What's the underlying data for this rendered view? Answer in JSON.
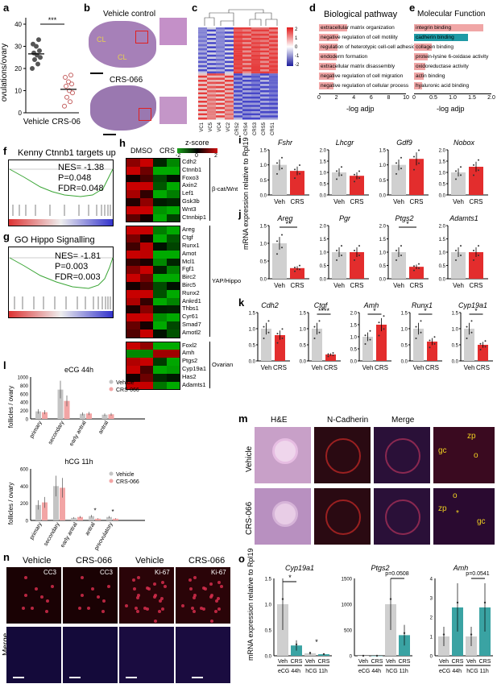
{
  "labels": {
    "a": "a",
    "b": "b",
    "c": "c",
    "d": "d",
    "e": "e",
    "f": "f",
    "g": "g",
    "h": "h",
    "i": "i",
    "j": "j",
    "k": "k",
    "l": "l",
    "m": "m",
    "n": "n",
    "o": "o"
  },
  "panel_a": {
    "ylabel": "ovulations/ovary",
    "sig": "***",
    "chart_data": {
      "type": "scatter",
      "categories": [
        "Vehicle",
        "CRS-066"
      ],
      "ylim": [
        0,
        40
      ],
      "yticks": [
        "0",
        "10",
        "20",
        "30",
        "40"
      ],
      "series": [
        {
          "name": "Vehicle",
          "values": [
            20,
            22,
            24,
            25,
            26,
            27,
            28,
            30,
            31,
            33
          ]
        },
        {
          "name": "CRS-066",
          "values": [
            3,
            5,
            7,
            9,
            10,
            12,
            13,
            14,
            16,
            17
          ]
        }
      ]
    }
  },
  "panel_b": {
    "top": "Vehicle control",
    "bottom": "CRS-066",
    "cl": "CL"
  },
  "panel_c": {
    "cols": [
      "VC1",
      "VC5",
      "VC4",
      "VC2",
      "CRS2",
      "CRS4",
      "CRS3",
      "CRS5",
      "CRS1"
    ],
    "legend": [
      "2",
      "1",
      "0",
      "-1",
      "-2"
    ]
  },
  "panel_d": {
    "title": "Biological pathway",
    "xlabel": "-log adjp",
    "xticks": [
      "0",
      "2",
      "4",
      "6",
      "8",
      "10"
    ],
    "chart_data": {
      "type": "bar",
      "categories": [
        "extracellular matrix organization",
        "negative regulation of cell motility",
        "regulation of heterotypic cell-cell adhesion",
        "endoderm formation",
        "extracellular matrix disassembly",
        "negative regulation of cell migration",
        "negative regulation of cellular process"
      ],
      "values": [
        3.2,
        2.2,
        2.1,
        2.0,
        1.9,
        1.8,
        1.7
      ],
      "xlim": [
        0,
        10
      ]
    }
  },
  "panel_e": {
    "title": "Molecular Function",
    "xlabel": "-log adjp",
    "xticks": [
      "0",
      "0.5",
      "1.0",
      "1.5",
      "2.0"
    ],
    "chart_data": {
      "type": "bar",
      "categories": [
        "integrin binding",
        "cadherin binding",
        "collagen binding",
        "protein-lysine 6-oxidase activity",
        "oxidoreductase activity",
        "actin binding",
        "hyaluronic acid binding"
      ],
      "values": [
        1.8,
        1.4,
        0.45,
        0.35,
        0.3,
        0.25,
        0.2
      ],
      "colors": [
        "#f0a6a6",
        "#1f9aa6",
        "#f0a6a6",
        "#f0a6a6",
        "#f0a6a6",
        "#f0a6a6",
        "#f0a6a6"
      ],
      "xlim": [
        0,
        2
      ]
    }
  },
  "panel_f": {
    "title": "Kenny Ctnnb1 targets up",
    "nes": "NES= -1.38",
    "p": "P=0.048",
    "fdr": "FDR=0.048"
  },
  "panel_g": {
    "title": "GO Hippo Signalling",
    "nes": "NES= -1.81",
    "p": "P=0.003",
    "fdr": "FDR=0.003"
  },
  "panel_h": {
    "zscore": "z-score",
    "zlegend": [
      "-2",
      "0",
      "2"
    ],
    "dmso": "DMSO",
    "crs": "CRS",
    "groups": [
      {
        "name": "β-cat/Wnt",
        "genes": [
          "Cdh2",
          "Ctnnb1",
          "Foxo3",
          "Axin2",
          "Lef1",
          "Gsk3b",
          "Wnt3",
          "Ctnnbip1"
        ]
      },
      {
        "name": "YAP/Hippo",
        "genes": [
          "Areg",
          "Ctgf",
          "Runx1",
          "Amot",
          "Mcl1",
          "Fgf1",
          "Birc2",
          "Birc5",
          "Runx2",
          "Ankrd1",
          "Thbs1",
          "Cyr61",
          "Smad7",
          "Amotl2"
        ]
      },
      {
        "name": "Ovarian",
        "genes": [
          "Foxl2",
          "Amh",
          "Ptgs2",
          "Cyp19a1",
          "Has2",
          "Adamts1"
        ]
      }
    ]
  },
  "ylabel_ij": "mRNA expression relative to Rpl19",
  "xcats_veh_crs": [
    "Veh",
    "CRS"
  ],
  "panel_i": [
    {
      "gene": "Fshr",
      "yticks": [
        "0.0",
        "0.5",
        "1.0",
        "1.5"
      ],
      "values": [
        1.0,
        0.8
      ]
    },
    {
      "gene": "Lhcgr",
      "yticks": [
        "0.0",
        "0.5",
        "1.0",
        "1.5",
        "2.0"
      ],
      "values": [
        1.0,
        0.85
      ]
    },
    {
      "gene": "Gdf9",
      "yticks": [
        "0.0",
        "0.5",
        "1.0",
        "1.5"
      ],
      "values": [
        1.0,
        1.2
      ]
    },
    {
      "gene": "Nobox",
      "yticks": [
        "0.0",
        "0.5",
        "1.0",
        "1.5",
        "2.0"
      ],
      "values": [
        1.0,
        1.25
      ]
    }
  ],
  "panel_j": [
    {
      "gene": "Areg",
      "sig": "**",
      "yticks": [
        "0.0",
        "0.5",
        "1.0",
        "1.5"
      ],
      "values": [
        1.0,
        0.3
      ]
    },
    {
      "gene": "Pgr",
      "sig": "",
      "yticks": [
        "0.0",
        "0.5",
        "1.0",
        "1.5",
        "2.0"
      ],
      "values": [
        1.0,
        1.0
      ]
    },
    {
      "gene": "Ptgs2",
      "sig": "*",
      "yticks": [
        "0.0",
        "0.5",
        "1.0",
        "1.5",
        "2.0"
      ],
      "values": [
        1.0,
        0.45
      ]
    },
    {
      "gene": "Adamts1",
      "sig": "",
      "yticks": [
        "0.0",
        "0.5",
        "1.0",
        "1.5",
        "2.0"
      ],
      "values": [
        1.0,
        1.0
      ]
    }
  ],
  "panel_k": [
    {
      "gene": "Cdh2",
      "sig": "",
      "yticks": [
        "0.0",
        "0.5",
        "1.0",
        "1.5"
      ],
      "values": [
        1.0,
        0.8
      ]
    },
    {
      "gene": "Ctgf",
      "sig": "****",
      "yticks": [
        "0.0",
        "0.5",
        "1.0",
        "1.5"
      ],
      "values": [
        1.0,
        0.2
      ]
    },
    {
      "gene": "Amh",
      "sig": "*",
      "yticks": [
        "0.0",
        "0.5",
        "1.0",
        "1.5",
        "2.0"
      ],
      "values": [
        1.0,
        1.5
      ]
    },
    {
      "gene": "Runx1",
      "sig": "*",
      "yticks": [
        "0.0",
        "0.5",
        "1.0",
        "1.5"
      ],
      "values": [
        1.0,
        0.6
      ]
    },
    {
      "gene": "Cyp19a1",
      "sig": "*",
      "yticks": [
        "0.0",
        "0.5",
        "1.0",
        "1.5"
      ],
      "values": [
        1.0,
        0.5
      ]
    }
  ],
  "panel_l": {
    "top": {
      "title": "eCG 44h",
      "ylabel": "follicles / ovary",
      "yticks": [
        "0",
        "200",
        "400",
        "600",
        "800",
        "1000"
      ],
      "legend": [
        "Vehicle",
        "CRS-066"
      ],
      "chart_data": {
        "type": "bar",
        "categories": [
          "primary",
          "secondary",
          "early antral",
          "antral"
        ],
        "series": [
          {
            "name": "Vehicle",
            "values": [
              180,
              700,
              120,
              100
            ]
          },
          {
            "name": "CRS-066",
            "values": [
              160,
              430,
              130,
              110
            ]
          }
        ],
        "ylim": [
          0,
          1000
        ]
      }
    },
    "bottom": {
      "title": "hCG 11h",
      "ylabel": "follicles / ovary",
      "yticks": [
        "0",
        "200",
        "400",
        "600"
      ],
      "legend": [
        "Vehicle",
        "CRS-066"
      ],
      "sig": "*",
      "chart_data": {
        "type": "bar",
        "categories": [
          "primary",
          "secondary",
          "early antral",
          "antral",
          "preovulatory"
        ],
        "series": [
          {
            "name": "Vehicle",
            "values": [
              180,
              400,
              30,
              50,
              40
            ]
          },
          {
            "name": "CRS-066",
            "values": [
              210,
              380,
              40,
              20,
              20
            ]
          }
        ],
        "ylim": [
          0,
          600
        ]
      }
    }
  },
  "panel_m": {
    "cols": [
      "H&E",
      "N-Cadherin",
      "Merge"
    ],
    "rows": [
      "Vehicle",
      "CRS-066"
    ],
    "anno": {
      "zp": "zp",
      "gc": "gc",
      "o": "o",
      "star": "*"
    }
  },
  "panel_n": {
    "cols": [
      "Vehicle",
      "CRS-066",
      "Vehicle",
      "CRS-066"
    ],
    "tags": [
      "CC3",
      "CC3",
      "Ki-67",
      "Ki-67"
    ],
    "merge": "Merge"
  },
  "panel_o": {
    "ylabel": "mRNA expression relative to Rpl19",
    "groups": [
      "eCG 44h",
      "hCG 11h"
    ],
    "cats": [
      "Veh",
      "CRS",
      "Veh",
      "CRS"
    ],
    "plots": [
      {
        "gene": "Cyp19a1",
        "yticks": [
          "0.0",
          "0.5",
          "1.0",
          "1.5"
        ],
        "sig": "*",
        "values": [
          1.0,
          0.2,
          0.05,
          0.03
        ]
      },
      {
        "gene": "Ptgs2",
        "yticks": [
          "0",
          "500",
          "1000",
          "1500"
        ],
        "pval": "p=0.0508",
        "values": [
          0,
          0,
          1000,
          400
        ]
      },
      {
        "gene": "Amh",
        "yticks": [
          "0",
          "1",
          "2",
          "3",
          "4"
        ],
        "pval": "p=0.0541",
        "values": [
          1.0,
          2.5,
          1.0,
          2.5
        ]
      }
    ]
  }
}
